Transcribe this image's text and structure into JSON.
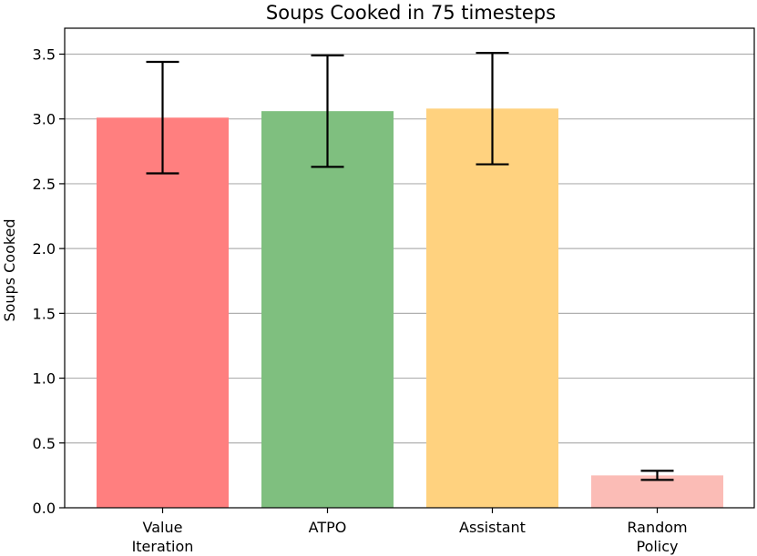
{
  "chart_data": {
    "type": "bar",
    "title": "Soups Cooked in 75 timesteps",
    "xlabel": "",
    "ylabel": "Soups Cooked",
    "ylim": [
      0,
      3.7
    ],
    "yticks": [
      "0.0",
      "0.5",
      "1.0",
      "1.5",
      "2.0",
      "2.5",
      "3.0",
      "3.5"
    ],
    "grid": "horizontal",
    "categories": [
      [
        "Value",
        "Iteration"
      ],
      [
        "ATPO"
      ],
      [
        "Assistant"
      ],
      [
        "Random",
        "Policy"
      ]
    ],
    "values": [
      3.01,
      3.06,
      3.08,
      0.25
    ],
    "error": [
      0.43,
      0.43,
      0.43,
      0.035
    ],
    "colors": [
      "#ff7f7f",
      "#7fbf7f",
      "#ffd27f",
      "#fbbcb6"
    ]
  }
}
